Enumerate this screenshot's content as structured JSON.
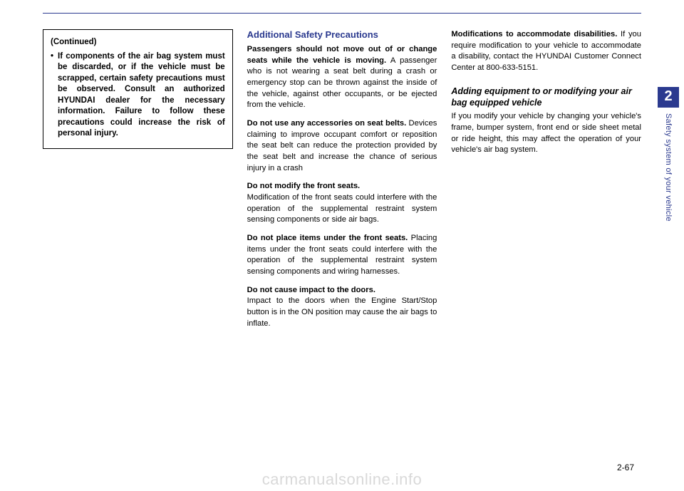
{
  "sideTab": {
    "chapterNum": "2",
    "chapterTitle": "Safety system of your vehicle"
  },
  "pageNumber": "2-67",
  "watermark": "carmanualsonline.info",
  "col1": {
    "continued": "(Continued)",
    "bullet": "•",
    "warning": "If components of the air bag system must be discarded, or if the vehicle must be scrapped, certain safety precautions must be observed. Consult an authorized HYUNDAI dealer for the necessary information. Failure to follow these precautions could increase the risk of personal injury."
  },
  "col2": {
    "heading": "Additional Safety Precautions",
    "p1_lead": "Passengers should not move out of or change seats while the vehicle is moving.",
    "p1_body": " A passenger who is not wearing a seat belt during a crash or emergency stop can be thrown against the inside of the vehicle, against other occupants, or be ejected from the vehicle.",
    "p2_lead": "Do not use any accessories on seat belts.",
    "p2_body": " Devices claiming to improve occupant comfort or reposition the seat belt can reduce the protection provided by the seat belt and increase the chance of serious injury in a crash",
    "p3_lead": "Do not modify the front seats.",
    "p3_body": "Modification of the front seats could interfere with the operation of the supplemental restraint system sensing components or side air bags.",
    "p4_lead": "Do not place items under the front seats.",
    "p4_body": " Placing items under the front seats could interfere with the operation of the supplemental restraint system sensing components and wiring harnesses.",
    "p5_lead": "Do not cause impact to the doors.",
    "p5_body": "Impact to the doors when the Engine Start/Stop button is in the ON position may cause the air bags to inflate."
  },
  "col3": {
    "p1_lead": "Modifications to accommodate disabilities.",
    "p1_body": " If you require modification to your vehicle to accommodate a disability, contact the HYUNDAI Customer Connect Center at 800-633-5151.",
    "sub": "Adding equipment to or modifying your air bag equipped vehicle",
    "p2": "If you modify your vehicle by changing your vehicle's frame, bumper system, front end or side sheet metal or ride height, this may affect the operation of your vehicle's air bag system."
  }
}
